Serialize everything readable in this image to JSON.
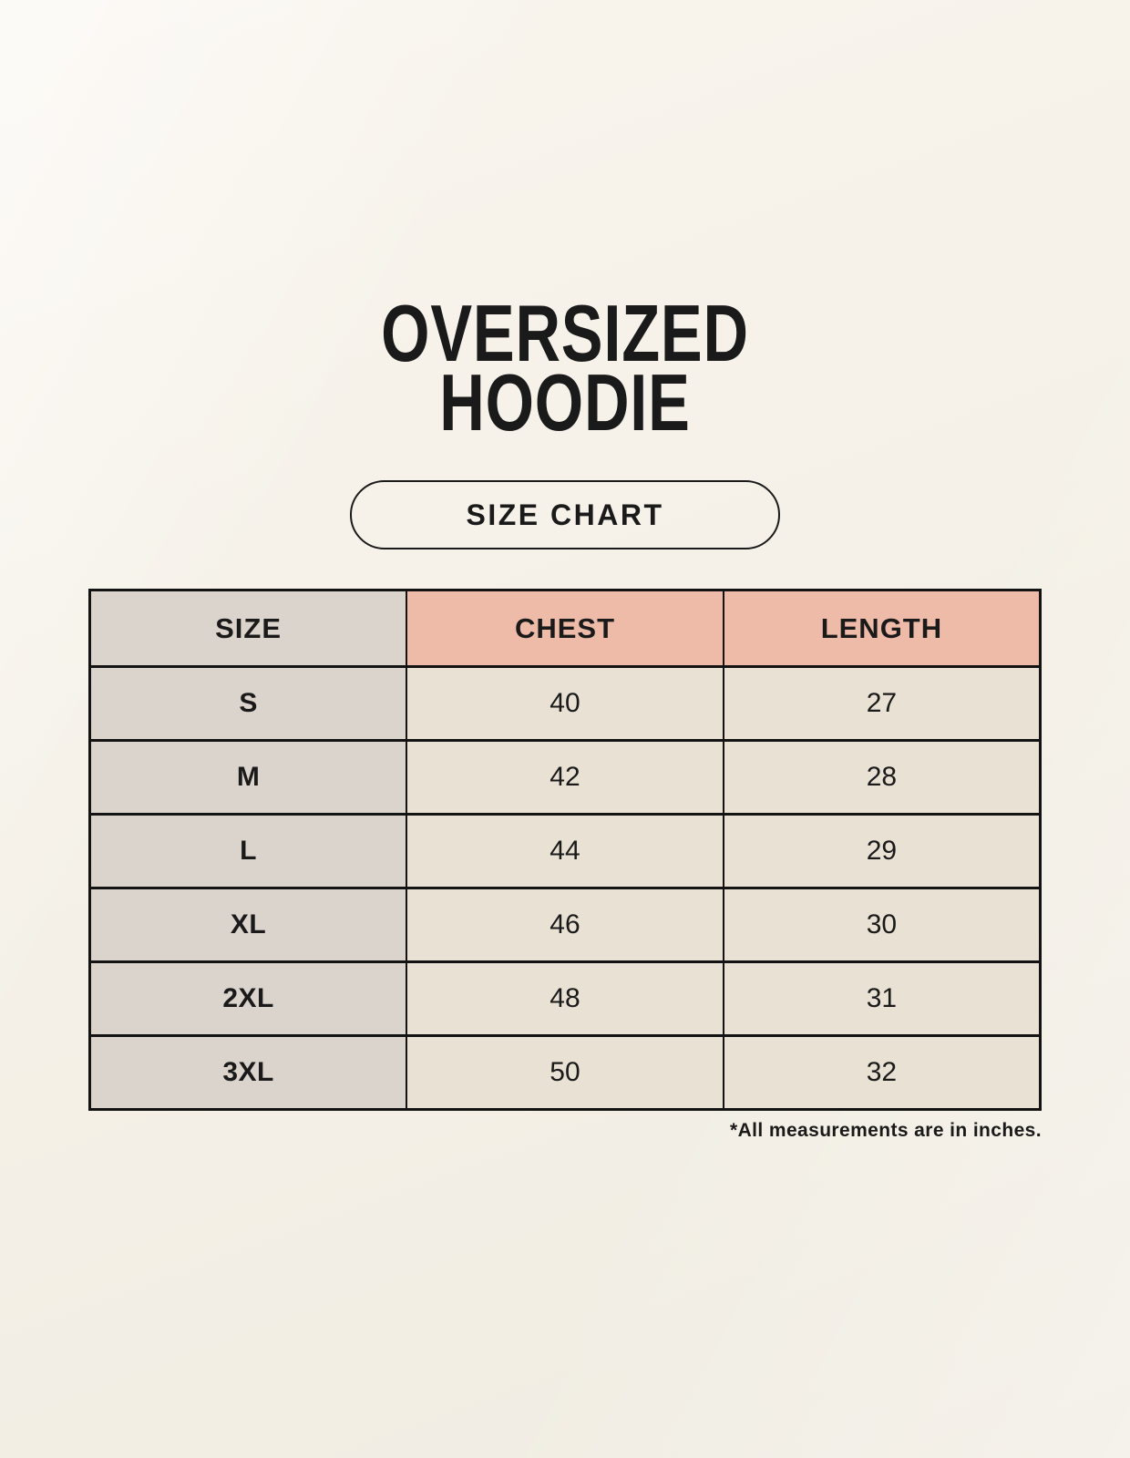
{
  "title": {
    "line1": "OVERSIZED",
    "line2": "HOODIE"
  },
  "size_chart_button": {
    "label": "SIZE CHART"
  },
  "table": {
    "columns": [
      "SIZE",
      "CHEST",
      "LENGTH"
    ],
    "rows": [
      {
        "size": "S",
        "chest": "40",
        "length": "27"
      },
      {
        "size": "M",
        "chest": "42",
        "length": "28"
      },
      {
        "size": "L",
        "chest": "44",
        "length": "29"
      },
      {
        "size": "XL",
        "chest": "46",
        "length": "30"
      },
      {
        "size": "2XL",
        "chest": "48",
        "length": "31"
      },
      {
        "size": "3XL",
        "chest": "50",
        "length": "32"
      }
    ]
  },
  "footnote": "*All measurements are in inches.",
  "colors": {
    "background": "#F6F2E9",
    "text": "#1A1A1A",
    "border": "#131313",
    "size_column_bg": "#DBD4CD",
    "header_accent_bg": "#EFBBA9",
    "data_cell_bg": "#E9E2D4"
  },
  "chart_data": {
    "type": "table",
    "title": "OVERSIZED HOODIE SIZE CHART",
    "columns": [
      "SIZE",
      "CHEST",
      "LENGTH"
    ],
    "rows": [
      [
        "S",
        40,
        27
      ],
      [
        "M",
        42,
        28
      ],
      [
        "L",
        44,
        29
      ],
      [
        "XL",
        46,
        30
      ],
      [
        "2XL",
        48,
        31
      ],
      [
        "3XL",
        50,
        32
      ]
    ],
    "units": "inches"
  }
}
